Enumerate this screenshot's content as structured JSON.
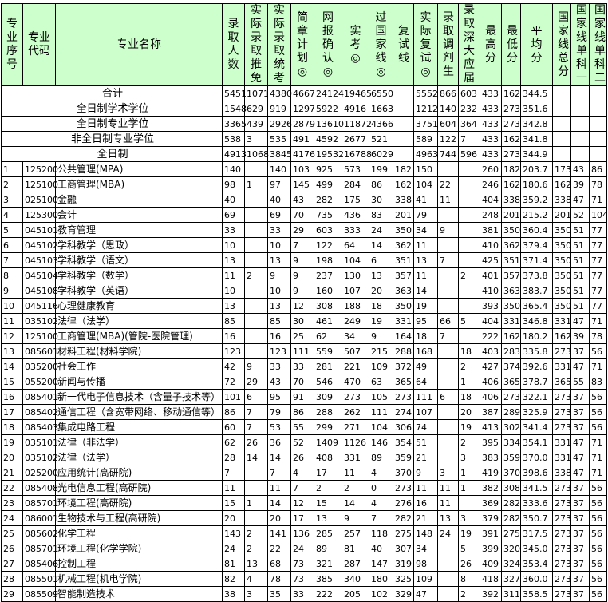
{
  "columns": [
    "专业序号",
    "专业代码",
    "专业名称",
    "录取人数",
    "实际录取推免",
    "实际录取统考",
    "简章计划◎",
    "网报确认◎",
    "实考◎",
    "过国家线◎",
    "复试线",
    "实际复试◎",
    "录取调剂生",
    "录取深大应届",
    "最高分",
    "最低分",
    "平均分",
    "国家线总分",
    "国家线单科一",
    "国家线单科二"
  ],
  "header_bg": "#ccffcc",
  "summary_rows": [
    {
      "label": "合计",
      "values": [
        "5451",
        "1071",
        "4380",
        "4667",
        "24124",
        "19465",
        "6550",
        "",
        "5552",
        "866",
        "603",
        "433",
        "162",
        "344.5",
        "",
        "",
        ""
      ]
    },
    {
      "label": "全日制学术学位",
      "values": [
        "1548",
        "629",
        "919",
        "1297",
        "5922",
        "4916",
        "1663",
        "",
        "1212",
        "140",
        "232",
        "433",
        "273",
        "351.6",
        "",
        "",
        ""
      ]
    },
    {
      "label": "全日制专业学位",
      "values": [
        "3365",
        "439",
        "2926",
        "2879",
        "13610",
        "11872",
        "4366",
        "",
        "3751",
        "604",
        "364",
        "433",
        "273",
        "342.8",
        "",
        "",
        ""
      ]
    },
    {
      "label": "非全日制专业学位",
      "values": [
        "538",
        "3",
        "535",
        "491",
        "4592",
        "2677",
        "521",
        "",
        "589",
        "122",
        "7",
        "433",
        "162",
        "341.8",
        "",
        "",
        ""
      ]
    },
    {
      "label": "全日制",
      "values": [
        "4913",
        "1068",
        "3845",
        "4176",
        "19532",
        "16788",
        "6029",
        "",
        "4963",
        "744",
        "596",
        "433",
        "273",
        "344.9",
        "",
        "",
        ""
      ]
    }
  ],
  "rows": [
    [
      "1",
      "125200",
      "公共管理(MPA)",
      "140",
      "",
      "140",
      "103",
      "925",
      "573",
      "199",
      "182",
      "150",
      "",
      "",
      "260",
      "182",
      "203.7",
      "173",
      "43",
      "86"
    ],
    [
      "2",
      "125100",
      "工商管理(MBA)",
      "98",
      "1",
      "97",
      "145",
      "499",
      "284",
      "86",
      "162",
      "104",
      "22",
      "",
      "246",
      "162",
      "180.6",
      "162",
      "39",
      "78"
    ],
    [
      "3",
      "025100",
      "金融",
      "40",
      "",
      "40",
      "43",
      "282",
      "175",
      "30",
      "338",
      "41",
      "11",
      "",
      "404",
      "338",
      "359.2",
      "338",
      "47",
      "71"
    ],
    [
      "4",
      "125300",
      "会计",
      "69",
      "",
      "69",
      "70",
      "735",
      "436",
      "83",
      "201",
      "79",
      "",
      "",
      "248",
      "201",
      "215.2",
      "201",
      "52",
      "104"
    ],
    [
      "5",
      "045101",
      "教育管理",
      "33",
      "",
      "33",
      "29",
      "603",
      "333",
      "24",
      "350",
      "34",
      "9",
      "",
      "381",
      "350",
      "360.4",
      "350",
      "51",
      "77"
    ],
    [
      "6",
      "045102",
      "学科教学（思政）",
      "10",
      "",
      "10",
      "7",
      "122",
      "64",
      "14",
      "362",
      "11",
      "",
      "",
      "410",
      "362",
      "379.4",
      "350",
      "51",
      "77"
    ],
    [
      "7",
      "045103",
      "学科教学（语文）",
      "13",
      "",
      "13",
      "9",
      "198",
      "104",
      "6",
      "351",
      "13",
      "7",
      "",
      "425",
      "351",
      "371.4",
      "350",
      "51",
      "77"
    ],
    [
      "8",
      "045104",
      "学科教学（数学）",
      "11",
      "2",
      "9",
      "9",
      "237",
      "130",
      "13",
      "357",
      "11",
      "",
      "2",
      "401",
      "357",
      "373.8",
      "350",
      "51",
      "77"
    ],
    [
      "9",
      "045108",
      "学科教学（英语）",
      "10",
      "",
      "10",
      "9",
      "160",
      "107",
      "20",
      "363",
      "14",
      "",
      "",
      "410",
      "363",
      "383.7",
      "350",
      "51",
      "77"
    ],
    [
      "10",
      "045116",
      "心理健康教育",
      "13",
      "",
      "13",
      "12",
      "308",
      "188",
      "18",
      "350",
      "19",
      "",
      "",
      "393",
      "350",
      "365.4",
      "350",
      "51",
      "77"
    ],
    [
      "11",
      "035102",
      "法律（法学）",
      "85",
      "",
      "85",
      "30",
      "461",
      "249",
      "19",
      "331",
      "95",
      "66",
      "5",
      "404",
      "331",
      "346.8",
      "331",
      "47",
      "71"
    ],
    [
      "12",
      "125100",
      "工商管理(MBA)(管院-医院管理)",
      "16",
      "",
      "16",
      "25",
      "62",
      "34",
      "9",
      "164",
      "18",
      "7",
      "",
      "222",
      "162",
      "180.2",
      "162",
      "39",
      "78"
    ],
    [
      "13",
      "085601",
      "材料工程(材料学院)",
      "123",
      "",
      "123",
      "111",
      "559",
      "507",
      "215",
      "288",
      "168",
      "",
      "18",
      "403",
      "283",
      "335.8",
      "273",
      "37",
      "56"
    ],
    [
      "14",
      "035200",
      "社会工作",
      "42",
      "9",
      "33",
      "33",
      "281",
      "221",
      "109",
      "372",
      "49",
      "",
      "2",
      "427",
      "374",
      "392.6",
      "331",
      "47",
      "71"
    ],
    [
      "15",
      "055200",
      "新闻与传播",
      "72",
      "29",
      "43",
      "70",
      "546",
      "470",
      "63",
      "365",
      "64",
      "",
      "1",
      "406",
      "365",
      "378.7",
      "365",
      "55",
      "83"
    ],
    [
      "16",
      "085401",
      "新一代电子信息技术（含量子技术等）",
      "101",
      "6",
      "95",
      "91",
      "309",
      "273",
      "105",
      "273",
      "111",
      "6",
      "18",
      "406",
      "273",
      "322.1",
      "273",
      "37",
      "56"
    ],
    [
      "17",
      "085402",
      "通信工程（含宽带网络、移动通信等）",
      "86",
      "7",
      "79",
      "86",
      "288",
      "262",
      "111",
      "274",
      "107",
      "",
      "20",
      "387",
      "289",
      "325.9",
      "273",
      "37",
      "56"
    ],
    [
      "18",
      "085403",
      "集成电路工程",
      "60",
      "7",
      "53",
      "55",
      "299",
      "271",
      "104",
      "306",
      "74",
      "",
      "19",
      "413",
      "302",
      "341.4",
      "273",
      "37",
      "56"
    ],
    [
      "19",
      "035101",
      "法律（非法学）",
      "62",
      "26",
      "36",
      "52",
      "1409",
      "1126",
      "146",
      "354",
      "51",
      "",
      "2",
      "395",
      "334",
      "354.1",
      "331",
      "47",
      "71"
    ],
    [
      "20",
      "035102",
      "法律（法学）",
      "28",
      "14",
      "14",
      "26",
      "408",
      "331",
      "89",
      "359",
      "21",
      "",
      "3",
      "383",
      "359",
      "370.0",
      "331",
      "47",
      "71"
    ],
    [
      "21",
      "025200",
      "应用统计(高研院)",
      "7",
      "",
      "7",
      "4",
      "17",
      "11",
      "4",
      "370",
      "9",
      "3",
      "1",
      "419",
      "370",
      "398.6",
      "338",
      "47",
      "71"
    ],
    [
      "22",
      "085408",
      "光电信息工程(高研院)",
      "11",
      "",
      "11",
      "7",
      "2",
      "2",
      "0",
      "273",
      "11",
      "11",
      "1",
      "382",
      "308",
      "341.5",
      "273",
      "37",
      "56"
    ],
    [
      "23",
      "085701",
      "环境工程(高研院)",
      "15",
      "1",
      "14",
      "12",
      "15",
      "14",
      "4",
      "276",
      "16",
      "11",
      "",
      "369",
      "282",
      "333.6",
      "273",
      "37",
      "56"
    ],
    [
      "24",
      "086001",
      "生物技术与工程(高研院)",
      "20",
      "",
      "20",
      "17",
      "13",
      "9",
      "7",
      "282",
      "21",
      "13",
      "3",
      "379",
      "282",
      "350.7",
      "273",
      "37",
      "56"
    ],
    [
      "25",
      "085602",
      "化学工程",
      "143",
      "2",
      "141",
      "136",
      "285",
      "257",
      "118",
      "275",
      "148",
      "24",
      "19",
      "391",
      "275",
      "317.5",
      "273",
      "37",
      "56"
    ],
    [
      "26",
      "085701",
      "环境工程(化学学院)",
      "24",
      "2",
      "22",
      "24",
      "89",
      "81",
      "40",
      "307",
      "34",
      "",
      "5",
      "399",
      "320",
      "345.0",
      "273",
      "37",
      "56"
    ],
    [
      "27",
      "085406",
      "控制工程",
      "81",
      "13",
      "68",
      "73",
      "321",
      "287",
      "147",
      "319",
      "98",
      "",
      "26",
      "409",
      "324",
      "353.4",
      "273",
      "37",
      "56"
    ],
    [
      "28",
      "085501",
      "机械工程(机电学院)",
      "82",
      "4",
      "78",
      "73",
      "385",
      "340",
      "180",
      "325",
      "109",
      "",
      "8",
      "418",
      "327",
      "360.0",
      "273",
      "37",
      "56"
    ],
    [
      "29",
      "085509",
      "智能制造技术",
      "38",
      "3",
      "35",
      "33",
      "222",
      "205",
      "102",
      "329",
      "47",
      "",
      "2",
      "392",
      "311",
      "358.5",
      "273",
      "37",
      "56"
    ]
  ]
}
